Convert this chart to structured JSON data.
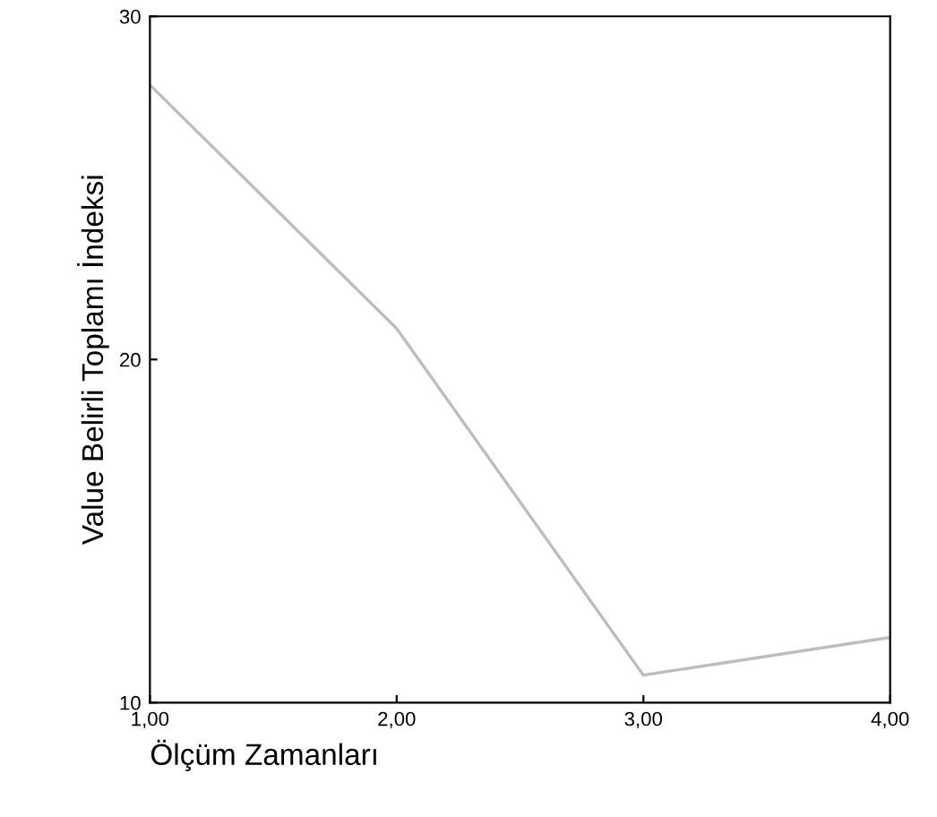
{
  "chart_data": {
    "type": "line",
    "xlabel": "Ölçüm Zamanları",
    "ylabel": "Value Belirli Toplamı İndeksi",
    "x": [
      1,
      2,
      3,
      4
    ],
    "series": [
      {
        "color": "#bdbdbd",
        "values": [
          28.0,
          20.9,
          10.8,
          11.9
        ]
      }
    ],
    "xlim": [
      1,
      4
    ],
    "ylim": [
      10,
      30
    ],
    "xticks": [
      {
        "value": 1,
        "label": "1,00"
      },
      {
        "value": 2,
        "label": "2,00"
      },
      {
        "value": 3,
        "label": "3,00"
      },
      {
        "value": 4,
        "label": "4,00"
      }
    ],
    "yticks": [
      10,
      20,
      30
    ],
    "grid": false,
    "legend": false,
    "marker": "none",
    "line_style": "solid"
  }
}
